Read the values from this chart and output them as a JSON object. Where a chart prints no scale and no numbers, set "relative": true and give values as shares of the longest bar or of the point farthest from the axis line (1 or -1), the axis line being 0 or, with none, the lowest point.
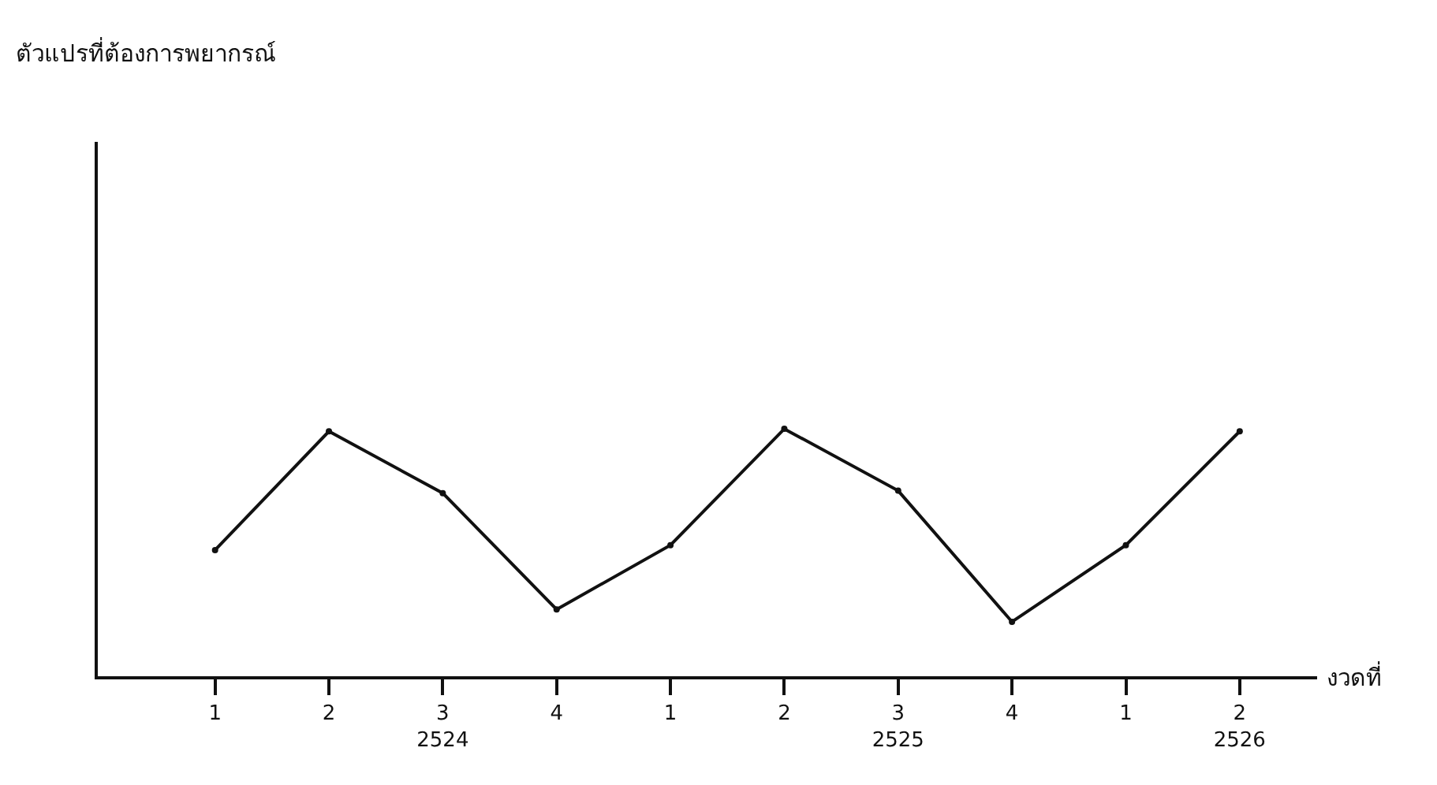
{
  "chart_data": {
    "type": "line",
    "relative": true,
    "annotations": [
      "ตัวแปรที่ต้องการพยากรณ์"
    ],
    "xlabel": "งวดที่",
    "categories": [
      "1",
      "2",
      "3\n2524",
      "4",
      "1",
      "2",
      "3\n2525",
      "4",
      "1",
      "2\n2526"
    ],
    "series": [
      {
        "color": "#111111",
        "values": [
          0.51,
          0.99,
          0.74,
          0.27,
          0.53,
          1,
          0.75,
          0.22,
          0.53,
          0.99
        ]
      }
    ],
    "marker": "circle",
    "line_style": "solid"
  }
}
